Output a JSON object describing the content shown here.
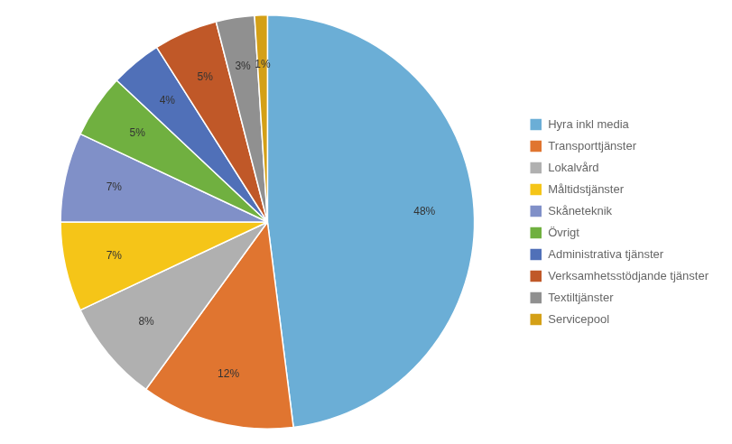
{
  "chart_data": {
    "type": "pie",
    "categories": [
      "Hyra inkl media",
      "Transporttjänster",
      "Lokalvård",
      "Måltidstjänster",
      "Skåneteknik",
      "Övrigt",
      "Administrativa tjänster",
      "Verksamhetsstödjande tjänster",
      "Textiltjänster",
      "Servicepool"
    ],
    "values": [
      48,
      12,
      8,
      7,
      7,
      5,
      4,
      5,
      3,
      1
    ],
    "value_labels": [
      "48%",
      "12%",
      "8%",
      "7%",
      "7%",
      "5%",
      "4%",
      "5%",
      "3%",
      "1%"
    ],
    "colors": [
      "#6BAED6",
      "#E07530",
      "#B0B0B0",
      "#F5C518",
      "#8090C8",
      "#70B040",
      "#5070B8",
      "#C05828",
      "#909090",
      "#D4A017"
    ],
    "legend": "right",
    "data_labels": true
  }
}
